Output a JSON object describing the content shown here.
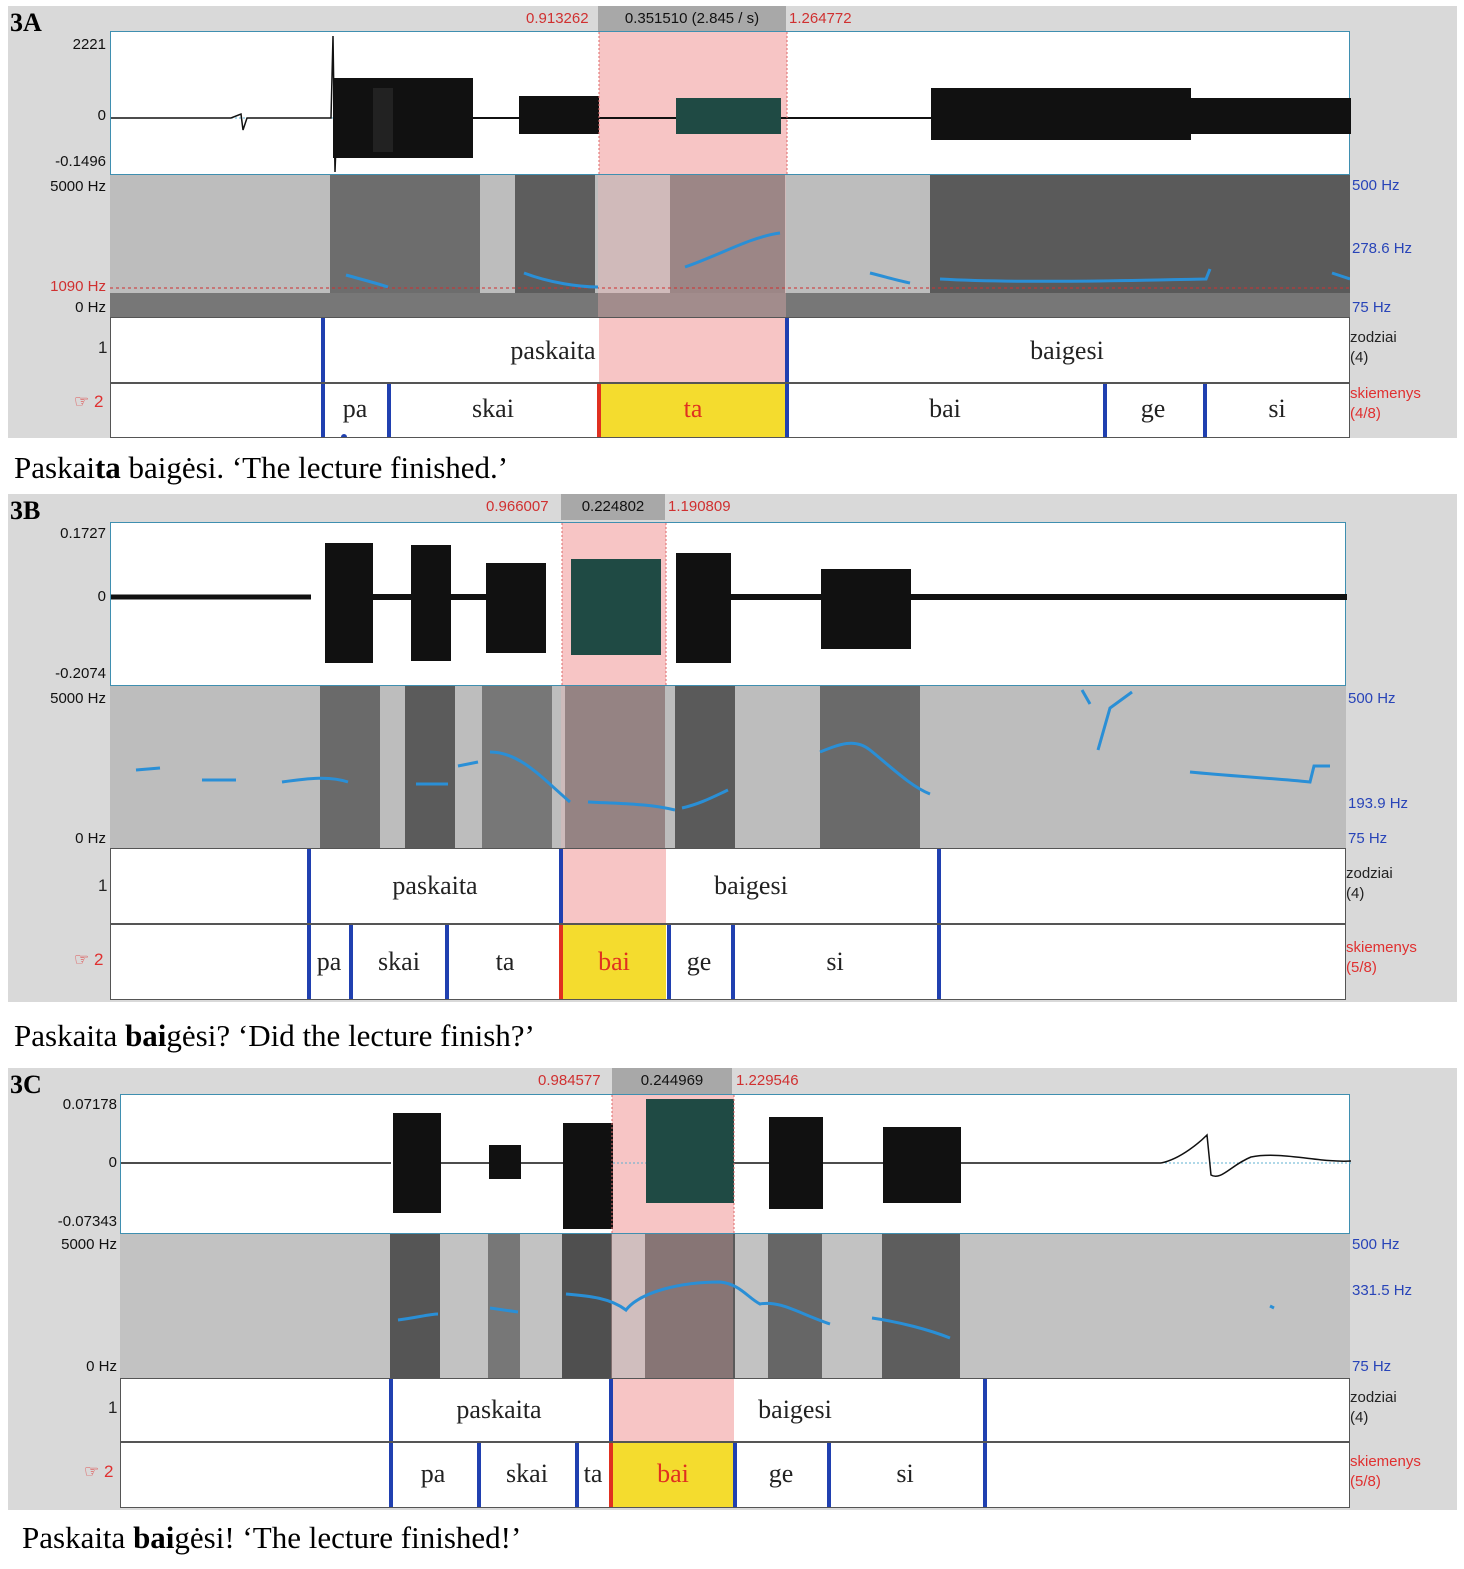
{
  "panels": [
    {
      "label": "3A",
      "selection": {
        "start": "0.913262",
        "duration": "0.351510 (2.845 / s)",
        "end": "1.264772"
      },
      "waveform": {
        "max": "2221",
        "zero": "0",
        "min": "-0.1496"
      },
      "spectrogram": {
        "top": "5000 Hz",
        "mid": "1090 Hz",
        "bottom": "0 Hz",
        "pitch_top": "500 Hz",
        "pitch_mid": "278.6 Hz",
        "pitch_bottom": "75 Hz"
      },
      "tier1": {
        "num": "1",
        "name": "zodziai",
        "count": "(4)",
        "words": [
          "paskaita",
          "baigesi"
        ]
      },
      "tier2": {
        "num": "☞ 2",
        "name": "skiemenys",
        "count": "(4/8)",
        "syllables": [
          "pa",
          "skai",
          "ta",
          "bai",
          "ge",
          "si"
        ]
      },
      "caption": {
        "pre": "Paskai",
        "bold": "ta",
        "post": " baigėsi.   ‘The lecture finished.’"
      }
    },
    {
      "label": "3B",
      "selection": {
        "start": "0.966007",
        "duration": "0.224802",
        "end": "1.190809"
      },
      "waveform": {
        "max": "0.1727",
        "zero": "0",
        "min": "-0.2074"
      },
      "spectrogram": {
        "top": "5000 Hz",
        "mid": "",
        "bottom": "0 Hz",
        "pitch_top": "500 Hz",
        "pitch_mid": "193.9 Hz",
        "pitch_bottom": "75 Hz"
      },
      "tier1": {
        "num": "1",
        "name": "zodziai",
        "count": "(4)",
        "words": [
          "paskaita",
          "baigesi"
        ]
      },
      "tier2": {
        "num": "☞ 2",
        "name": "skiemenys",
        "count": "(5/8)",
        "syllables": [
          "pa",
          "skai",
          "ta",
          "bai",
          "ge",
          "si"
        ]
      },
      "caption": {
        "pre": "Paskaita ",
        "bold": "bai",
        "post": "gėsi?  ‘Did the lecture finish?’"
      }
    },
    {
      "label": "3C",
      "selection": {
        "start": "0.984577",
        "duration": "0.244969",
        "end": "1.229546"
      },
      "waveform": {
        "max": "0.07178",
        "zero": "0",
        "min": "-0.07343"
      },
      "spectrogram": {
        "top": "5000 Hz",
        "mid": "",
        "bottom": "0 Hz",
        "pitch_top": "500 Hz",
        "pitch_mid": "331.5 Hz",
        "pitch_bottom": "75 Hz"
      },
      "tier1": {
        "num": "1",
        "name": "zodziai",
        "count": "(4)",
        "words": [
          "paskaita",
          "baigesi"
        ]
      },
      "tier2": {
        "num": "☞ 2",
        "name": "skiemenys",
        "count": "(5/8)",
        "syllables": [
          "pa",
          "skai",
          "ta",
          "bai",
          "ge",
          "si"
        ]
      },
      "caption": {
        "pre": "Paskaita ",
        "bold": "bai",
        "post": "gėsi!  ‘The lecture finished!’"
      }
    }
  ],
  "colors": {
    "selection": "#f7c5c5",
    "syllable_highlight": "#f4dc2e",
    "pitch": "#2a8fd6",
    "boundary": "#2040b0"
  }
}
